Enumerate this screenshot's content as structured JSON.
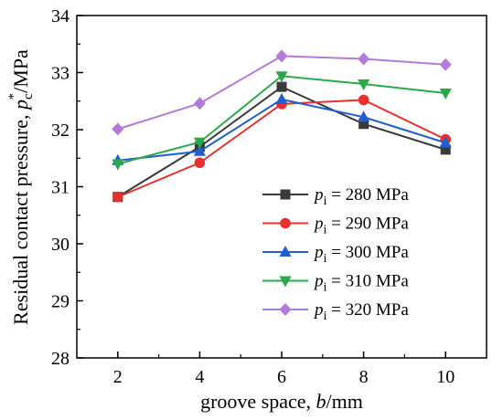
{
  "chart_data": {
    "type": "line",
    "x": [
      2,
      4,
      6,
      8,
      10
    ],
    "xticks": [
      "2",
      "4",
      "6",
      "8",
      "10"
    ],
    "yticks": [
      "28",
      "29",
      "30",
      "31",
      "32",
      "33",
      "34"
    ],
    "xlim": [
      1,
      11
    ],
    "ylim": [
      28,
      34
    ],
    "xlabel": {
      "prefix": "groove space, ",
      "var": "b",
      "suffix": "/mm"
    },
    "ylabel": {
      "prefix": "Residual contact pressure, ",
      "var": "p",
      "sub": "c",
      "sup": "*",
      "suffix": "/MPa"
    },
    "legend_position": "lower-right",
    "grid": false,
    "series": [
      {
        "var": "p",
        "sub": "i",
        "label_rest": " = 280 MPa",
        "color": "#3a3a3a",
        "marker": "square",
        "values": [
          30.82,
          31.7,
          32.75,
          32.1,
          31.65
        ]
      },
      {
        "var": "p",
        "sub": "i",
        "label_rest": " = 290 MPa",
        "color": "#e8302e",
        "marker": "circle",
        "values": [
          30.82,
          31.42,
          32.45,
          32.52,
          31.83
        ]
      },
      {
        "var": "p",
        "sub": "i",
        "label_rest": " = 300 MPa",
        "color": "#1f5fd1",
        "marker": "triangle-up",
        "values": [
          31.46,
          31.62,
          32.53,
          32.22,
          31.77
        ]
      },
      {
        "var": "p",
        "sub": "i",
        "label_rest": " = 310 MPa",
        "color": "#2ba84a",
        "marker": "triangle-down",
        "values": [
          31.4,
          31.78,
          32.94,
          32.8,
          32.64
        ]
      },
      {
        "var": "p",
        "sub": "i",
        "label_rest": " = 320 MPa",
        "color": "#b57ad9",
        "marker": "diamond",
        "values": [
          32.01,
          32.46,
          33.29,
          33.24,
          33.14
        ]
      }
    ]
  }
}
